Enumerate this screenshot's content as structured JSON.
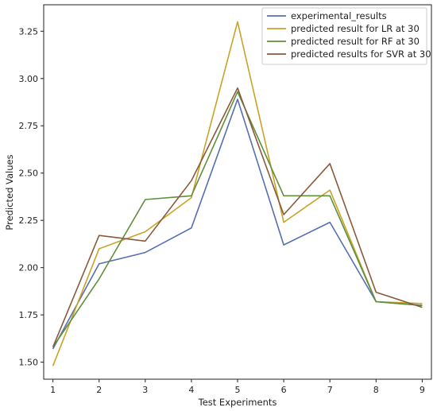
{
  "chart_data": {
    "type": "line",
    "title": "",
    "xlabel": "Test Experiments",
    "ylabel": "Predicted Values",
    "x": [
      1,
      2,
      3,
      4,
      5,
      6,
      7,
      8,
      9
    ],
    "xticks": [
      "1",
      "2",
      "3",
      "4",
      "5",
      "6",
      "7",
      "8",
      "9"
    ],
    "xlim": [
      0.8,
      9.2
    ],
    "yticks": [
      "1.50",
      "1.75",
      "2.00",
      "2.25",
      "2.50",
      "2.75",
      "3.00",
      "3.25"
    ],
    "ylim": [
      1.41,
      3.39
    ],
    "grid": false,
    "legend_position": "top-right",
    "series": [
      {
        "name": "experimental_results",
        "color": "#5470b0",
        "values": [
          1.57,
          2.02,
          2.08,
          2.21,
          2.89,
          2.12,
          2.24,
          1.82,
          1.8
        ]
      },
      {
        "name": "predicted result for LR at 30",
        "color": "#c9a227",
        "values": [
          1.48,
          2.1,
          2.19,
          2.37,
          3.3,
          2.24,
          2.41,
          1.82,
          1.81
        ]
      },
      {
        "name": "predicted result for RF at 30",
        "color": "#5f8f3a",
        "values": [
          1.58,
          1.94,
          2.36,
          2.38,
          2.93,
          2.38,
          2.38,
          1.82,
          1.8
        ]
      },
      {
        "name": "predicted results for SVR at 30",
        "color": "#8a5a3c",
        "values": [
          1.58,
          2.17,
          2.14,
          2.46,
          2.95,
          2.28,
          2.55,
          1.87,
          1.79
        ]
      }
    ]
  }
}
